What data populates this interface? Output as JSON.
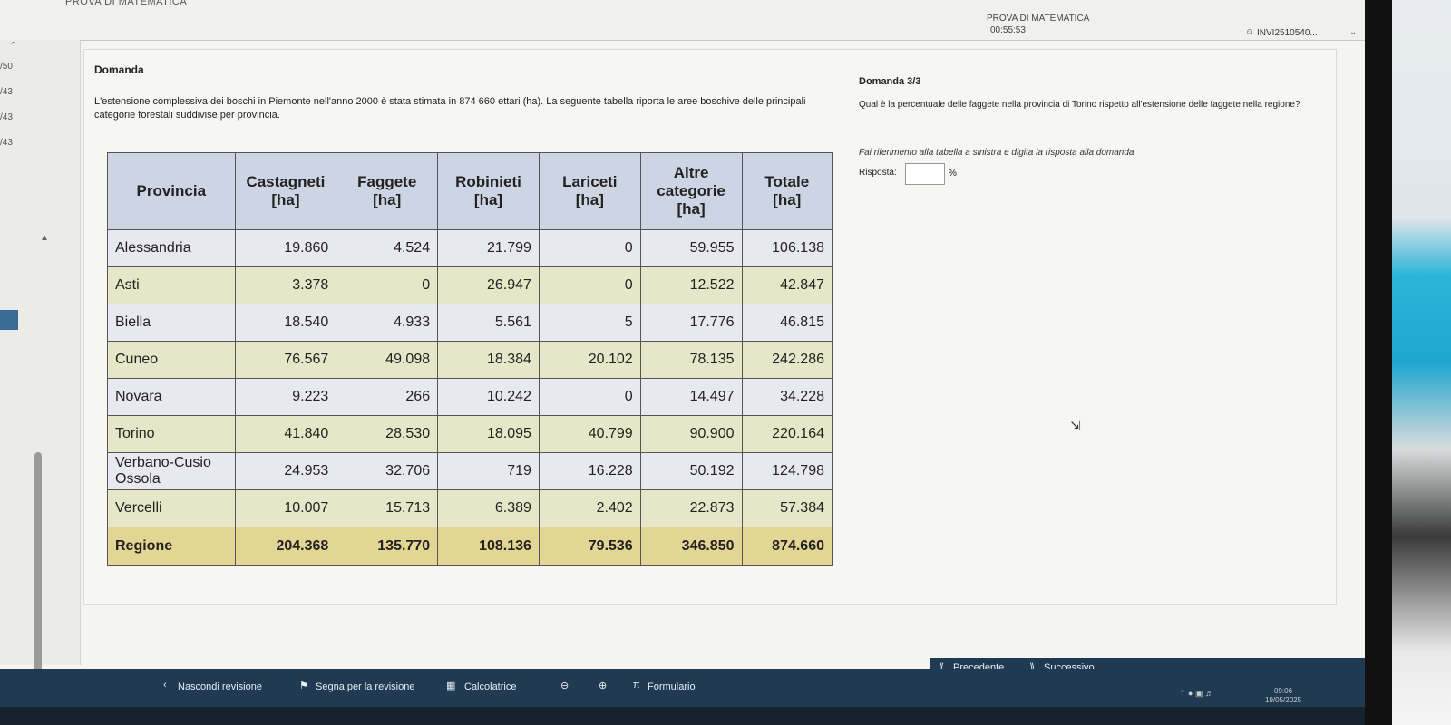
{
  "header": {
    "app_title": "PROVA DI MATEMATICA",
    "exam_title": "PROVA DI MATEMATICA",
    "timer": "00:55:53",
    "user_id": "INVI2510540..."
  },
  "left_panel": {
    "items": [
      "/50",
      "/43",
      "/43",
      "/43"
    ]
  },
  "question": {
    "label": "Domanda",
    "text": "L'estensione complessiva dei boschi in Piemonte nell'anno 2000 è stata stimata in 874 660 ettari (ha). La seguente tabella riporta le aree boschive delle principali categorie forestali suddivise per provincia."
  },
  "table": {
    "headers": [
      "Provincia",
      "Castagneti [ha]",
      "Faggete [ha]",
      "Robinieti [ha]",
      "Lariceti [ha]",
      "Altre categorie [ha]",
      "Totale [ha]"
    ],
    "rows": [
      [
        "Alessandria",
        "19.860",
        "4.524",
        "21.799",
        "0",
        "59.955",
        "106.138"
      ],
      [
        "Asti",
        "3.378",
        "0",
        "26.947",
        "0",
        "12.522",
        "42.847"
      ],
      [
        "Biella",
        "18.540",
        "4.933",
        "5.561",
        "5",
        "17.776",
        "46.815"
      ],
      [
        "Cuneo",
        "76.567",
        "49.098",
        "18.384",
        "20.102",
        "78.135",
        "242.286"
      ],
      [
        "Novara",
        "9.223",
        "266",
        "10.242",
        "0",
        "14.497",
        "34.228"
      ],
      [
        "Torino",
        "41.840",
        "28.530",
        "18.095",
        "40.799",
        "90.900",
        "220.164"
      ],
      [
        "Verbano-Cusio Ossola",
        "24.953",
        "32.706",
        "719",
        "16.228",
        "50.192",
        "124.798"
      ],
      [
        "Vercelli",
        "10.007",
        "15.713",
        "6.389",
        "2.402",
        "22.873",
        "57.384"
      ]
    ],
    "total": [
      "Regione",
      "204.368",
      "135.770",
      "108.136",
      "79.536",
      "346.850",
      "874.660"
    ]
  },
  "right": {
    "title": "Domanda 3/3",
    "question": "Qual è la percentuale delle faggete nella provincia di Torino rispetto all'estensione delle faggete nella regione?",
    "instruction": "Fai riferimento alla tabella a sinistra e digita la risposta alla domanda.",
    "answer_label": "Risposta:",
    "answer_value": "",
    "unit": "%"
  },
  "bottom": {
    "hide_review": "Nascondi revisione",
    "flag_review": "Segna per la revisione",
    "calculator": "Calcolatrice",
    "formulary": "Formulario",
    "previous": "Precedente",
    "next": "Successivo"
  },
  "taskbar": {
    "time": "09:06",
    "date": "19/05/2025"
  }
}
